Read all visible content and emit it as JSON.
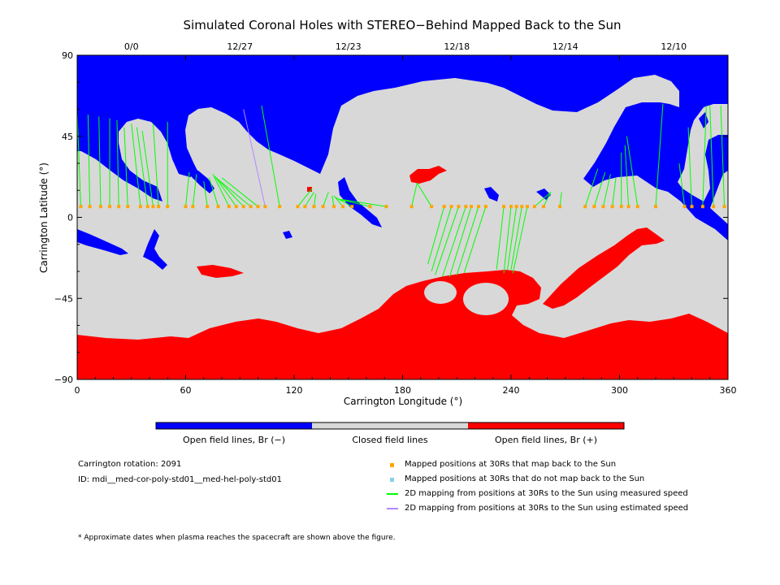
{
  "chart_data": {
    "type": "map",
    "title": "Simulated Coronal Holes with STEREO−Behind Mapped Back to the Sun",
    "xlabel": "Carrington Longitude (°)",
    "ylabel": "Carrington Latitude (°)",
    "xlim": [
      0,
      360
    ],
    "ylim": [
      -90,
      90
    ],
    "xticks": [
      0,
      60,
      120,
      180,
      240,
      300,
      360
    ],
    "yticks": [
      90,
      45,
      0,
      -45,
      -90
    ],
    "ytick_labels": [
      "90",
      "45",
      "0",
      "−45",
      "−90"
    ],
    "top_date_labels": [
      {
        "date": "0/0",
        "lon": 30
      },
      {
        "date": "12/27",
        "lon": 90
      },
      {
        "date": "12/23",
        "lon": 150
      },
      {
        "date": "12/18",
        "lon": 210
      },
      {
        "date": "12/14",
        "lon": 270
      },
      {
        "date": "12/10",
        "lon": 330
      }
    ],
    "colorbar": {
      "labels": [
        "Open field lines, Br (−)",
        "Closed field lines",
        "Open field lines, Br (+)"
      ],
      "colors": [
        "#0000ff",
        "#d8d8d8",
        "#ff0000"
      ]
    },
    "carrington_rotation_label": "Carrington rotation: 2091",
    "id_label": "ID: mdi__med-cor-poly-std01__med-hel-poly-std01",
    "legend": [
      {
        "label": "Mapped positions at 30Rs that map back to the Sun",
        "color": "#ffa500",
        "kind": "square"
      },
      {
        "label": "Mapped positions at 30Rs that do not map back to the Sun",
        "color": "#87ceeb",
        "kind": "square"
      },
      {
        "label": "2D mapping from positions at 30Rs to the Sun using measured speed",
        "color": "#00ff00",
        "kind": "line"
      },
      {
        "label": "2D mapping from positions at 30Rs to the Sun using estimated speed",
        "color": "#b088ff",
        "kind": "line"
      }
    ],
    "footnote": "* Approximate dates when plasma reaches the spacecraft are shown above the figure.",
    "mapping_lat_30Rs": 6,
    "mappings": [
      {
        "lon30": 2,
        "lonSun": 0,
        "latSun": 58,
        "speed": "measured"
      },
      {
        "lon30": 7,
        "lonSun": 6,
        "latSun": 57,
        "speed": "measured"
      },
      {
        "lon30": 13,
        "lonSun": 12,
        "latSun": 56,
        "speed": "measured"
      },
      {
        "lon30": 18,
        "lonSun": 18,
        "latSun": 55,
        "speed": "measured"
      },
      {
        "lon30": 23,
        "lonSun": 22,
        "latSun": 54,
        "speed": "measured"
      },
      {
        "lon30": 28,
        "lonSun": 26,
        "latSun": 50,
        "speed": "measured"
      },
      {
        "lon30": 35,
        "lonSun": 30,
        "latSun": 52,
        "speed": "measured"
      },
      {
        "lon30": 39,
        "lonSun": 33,
        "latSun": 50,
        "speed": "measured"
      },
      {
        "lon30": 42,
        "lonSun": 36,
        "latSun": 48,
        "speed": "measured"
      },
      {
        "lon30": 45,
        "lonSun": 42,
        "latSun": 52,
        "speed": "measured"
      },
      {
        "lon30": 50,
        "lonSun": 50,
        "latSun": 53,
        "speed": "measured"
      },
      {
        "lon30": 60,
        "lonSun": 62,
        "latSun": 25,
        "speed": "measured"
      },
      {
        "lon30": 64,
        "lonSun": 66,
        "latSun": 24,
        "speed": "measured"
      },
      {
        "lon30": 72,
        "lonSun": 70,
        "latSun": 20,
        "speed": "measured"
      },
      {
        "lon30": 78,
        "lonSun": 73,
        "latSun": 22,
        "speed": "measured"
      },
      {
        "lon30": 84,
        "lonSun": 75,
        "latSun": 24,
        "speed": "measured"
      },
      {
        "lon30": 88,
        "lonSun": 76,
        "latSun": 23,
        "speed": "measured"
      },
      {
        "lon30": 92,
        "lonSun": 77,
        "latSun": 22,
        "speed": "measured"
      },
      {
        "lon30": 96,
        "lonSun": 78,
        "latSun": 21,
        "speed": "measured"
      },
      {
        "lon30": 100,
        "lonSun": 80,
        "latSun": 22,
        "speed": "measured"
      },
      {
        "lon30": 104,
        "lonSun": 92,
        "latSun": 60,
        "speed": "estimated"
      },
      {
        "lon30": 112,
        "lonSun": 102,
        "latSun": 62,
        "speed": "measured"
      },
      {
        "lon30": 122,
        "lonSun": 130,
        "latSun": 16,
        "speed": "measured"
      },
      {
        "lon30": 126,
        "lonSun": 131,
        "latSun": 14,
        "speed": "measured"
      },
      {
        "lon30": 131,
        "lonSun": 132,
        "latSun": 13,
        "speed": "measured"
      },
      {
        "lon30": 136,
        "lonSun": 139,
        "latSun": 14,
        "speed": "measured"
      },
      {
        "lon30": 142,
        "lonSun": 141,
        "latSun": 12,
        "speed": "measured"
      },
      {
        "lon30": 147,
        "lonSun": 142,
        "latSun": 12,
        "speed": "measured"
      },
      {
        "lon30": 152,
        "lonSun": 143,
        "latSun": 11,
        "speed": "measured"
      },
      {
        "lon30": 162,
        "lonSun": 145,
        "latSun": 10,
        "speed": "measured"
      },
      {
        "lon30": 171,
        "lonSun": 146,
        "latSun": 10,
        "speed": "measured"
      },
      {
        "lon30": 185,
        "lonSun": 188,
        "latSun": 19,
        "speed": "measured"
      },
      {
        "lon30": 196,
        "lonSun": 188,
        "latSun": 19,
        "speed": "measured"
      },
      {
        "lon30": 203,
        "lonSun": 194,
        "latSun": -26,
        "speed": "measured"
      },
      {
        "lon30": 207,
        "lonSun": 196,
        "latSun": -30,
        "speed": "measured"
      },
      {
        "lon30": 211,
        "lonSun": 198,
        "latSun": -32,
        "speed": "measured"
      },
      {
        "lon30": 215,
        "lonSun": 202,
        "latSun": -33,
        "speed": "measured"
      },
      {
        "lon30": 218,
        "lonSun": 206,
        "latSun": -33,
        "speed": "measured"
      },
      {
        "lon30": 222,
        "lonSun": 210,
        "latSun": -32,
        "speed": "measured"
      },
      {
        "lon30": 226,
        "lonSun": 214,
        "latSun": -31,
        "speed": "measured"
      },
      {
        "lon30": 236,
        "lonSun": 232,
        "latSun": -29,
        "speed": "measured"
      },
      {
        "lon30": 240,
        "lonSun": 236,
        "latSun": -31,
        "speed": "measured"
      },
      {
        "lon30": 243,
        "lonSun": 238,
        "latSun": -29,
        "speed": "measured"
      },
      {
        "lon30": 246,
        "lonSun": 240,
        "latSun": -29,
        "speed": "measured"
      },
      {
        "lon30": 249,
        "lonSun": 241,
        "latSun": -31,
        "speed": "measured"
      },
      {
        "lon30": 253,
        "lonSun": 262,
        "latSun": 14,
        "speed": "measured"
      },
      {
        "lon30": 258,
        "lonSun": 262,
        "latSun": 14,
        "speed": "measured"
      },
      {
        "lon30": 267,
        "lonSun": 268,
        "latSun": 14,
        "speed": "measured"
      },
      {
        "lon30": 281,
        "lonSun": 288,
        "latSun": 27,
        "speed": "measured"
      },
      {
        "lon30": 286,
        "lonSun": 292,
        "latSun": 25,
        "speed": "measured"
      },
      {
        "lon30": 291,
        "lonSun": 295,
        "latSun": 24,
        "speed": "measured"
      },
      {
        "lon30": 296,
        "lonSun": 298,
        "latSun": 22,
        "speed": "measured"
      },
      {
        "lon30": 301,
        "lonSun": 301,
        "latSun": 36,
        "speed": "measured"
      },
      {
        "lon30": 305,
        "lonSun": 303,
        "latSun": 40,
        "speed": "measured"
      },
      {
        "lon30": 310,
        "lonSun": 304,
        "latSun": 45,
        "speed": "measured"
      },
      {
        "lon30": 320,
        "lonSun": 324,
        "latSun": 63,
        "speed": "measured"
      },
      {
        "lon30": 336,
        "lonSun": 333,
        "latSun": 30,
        "speed": "measured"
      },
      {
        "lon30": 340,
        "lonSun": 338,
        "latSun": 50,
        "speed": "measured"
      },
      {
        "lon30": 346,
        "lonSun": 348,
        "latSun": 62,
        "speed": "measured"
      },
      {
        "lon30": 352,
        "lonSun": 350,
        "latSun": 62,
        "speed": "measured"
      },
      {
        "lon30": 358,
        "lonSun": 356,
        "latSun": 62,
        "speed": "measured"
      }
    ]
  }
}
